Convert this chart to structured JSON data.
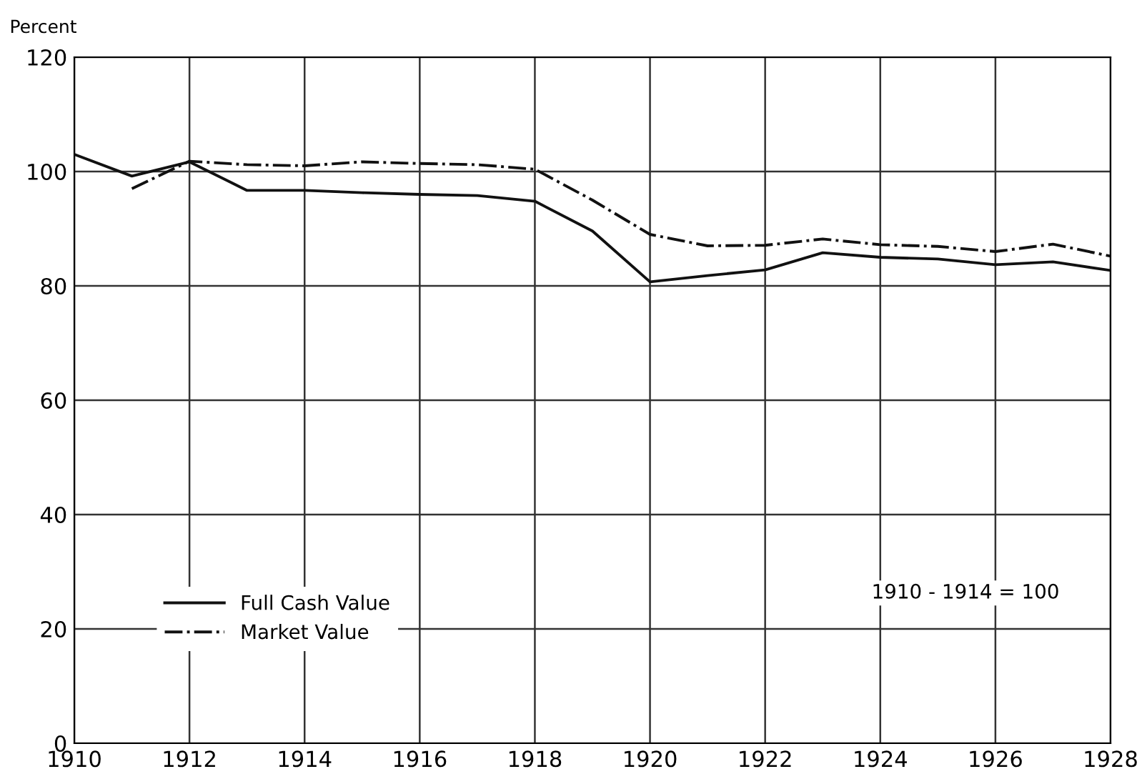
{
  "chart_data": {
    "type": "line",
    "ylabel": "Percent",
    "x": [
      1910,
      1911,
      1912,
      1913,
      1914,
      1915,
      1916,
      1917,
      1918,
      1919,
      1920,
      1921,
      1922,
      1923,
      1924,
      1925,
      1926,
      1927,
      1928
    ],
    "series": [
      {
        "name": "Full Cash Value",
        "color": "#111111",
        "line_style": "solid",
        "values": [
          103,
          99.2,
          101.7,
          96.7,
          96.7,
          96.3,
          96,
          95.8,
          94.8,
          89.6,
          80.7,
          81.8,
          82.8,
          85.8,
          85,
          84.7,
          83.7,
          84.2,
          82.7
        ]
      },
      {
        "name": "Market Value",
        "color": "#111111",
        "line_style": "dashdot",
        "values": [
          null,
          97,
          101.8,
          101.2,
          101,
          101.7,
          101.4,
          101.2,
          100.4,
          95,
          89,
          87,
          87.1,
          88.2,
          87.2,
          86.9,
          86,
          87.3,
          85.2
        ]
      }
    ],
    "xlim": [
      1910,
      1928
    ],
    "xticks": [
      1910,
      1912,
      1914,
      1916,
      1918,
      1920,
      1922,
      1924,
      1926,
      1928
    ],
    "ylim": [
      0,
      120
    ],
    "yticks": [
      0,
      20,
      40,
      60,
      80,
      100,
      120
    ],
    "grid": true,
    "legend": "bottom left",
    "marker": "none",
    "annotations": [
      "1910 - 1914 = 100"
    ]
  }
}
